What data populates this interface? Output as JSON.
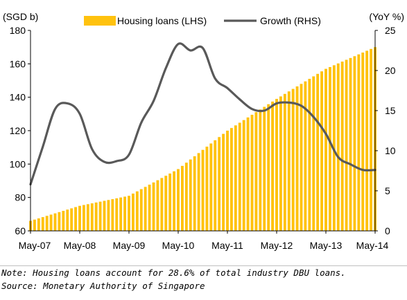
{
  "chart_data": {
    "type": "bar+line",
    "left_axis_unit": "(SGD b)",
    "right_axis_unit": "(YoY %)",
    "left_ylim": [
      60,
      180
    ],
    "left_ticks": [
      "60",
      "80",
      "100",
      "120",
      "140",
      "160",
      "180"
    ],
    "right_ylim": [
      0,
      25
    ],
    "right_ticks": [
      "0",
      "5",
      "10",
      "15",
      "20",
      "25"
    ],
    "x_range": [
      "2007-05",
      "2014-05"
    ],
    "x_tick_labels": [
      "May-07",
      "May-08",
      "May-09",
      "May-10",
      "May-11",
      "May-12",
      "May-13",
      "May-14"
    ],
    "legend": {
      "placement": "top"
    },
    "bar_color": "#FFC20E",
    "line_color": "#595959",
    "series": [
      {
        "name": "Housing loans (LHS)",
        "kind": "bar",
        "axis": "left",
        "x": [
          "2007-05",
          "2008-05",
          "2009-05",
          "2009-11",
          "2010-05",
          "2011-05",
          "2012-05",
          "2013-05",
          "2014-05"
        ],
        "values": [
          66,
          75,
          81,
          89,
          97,
          120,
          139,
          157,
          170
        ]
      },
      {
        "name": "Growth (RHS)",
        "kind": "line",
        "axis": "right",
        "x": [
          "2007-05",
          "2007-08",
          "2007-11",
          "2008-02",
          "2008-05",
          "2008-08",
          "2008-11",
          "2009-02",
          "2009-05",
          "2009-08",
          "2009-11",
          "2010-02",
          "2010-05",
          "2010-08",
          "2010-11",
          "2011-02",
          "2011-05",
          "2011-08",
          "2011-11",
          "2012-02",
          "2012-05",
          "2012-08",
          "2012-11",
          "2013-02",
          "2013-05",
          "2013-08",
          "2013-11",
          "2014-02",
          "2014-05"
        ],
        "values": [
          5.8,
          10.5,
          15.2,
          15.9,
          14.6,
          10.2,
          8.6,
          8.7,
          9.5,
          13.5,
          16.2,
          20.3,
          23.3,
          22.5,
          22.8,
          19.0,
          17.8,
          16.4,
          15.2,
          15.0,
          15.9,
          16.0,
          15.6,
          14.2,
          12.1,
          9.2,
          8.3,
          7.6,
          7.6
        ]
      }
    ]
  },
  "notes": {
    "note": "Note: Housing loans account for 28.6% of total industry DBU loans.",
    "source": "Source: Monetary Authority of Singapore"
  }
}
